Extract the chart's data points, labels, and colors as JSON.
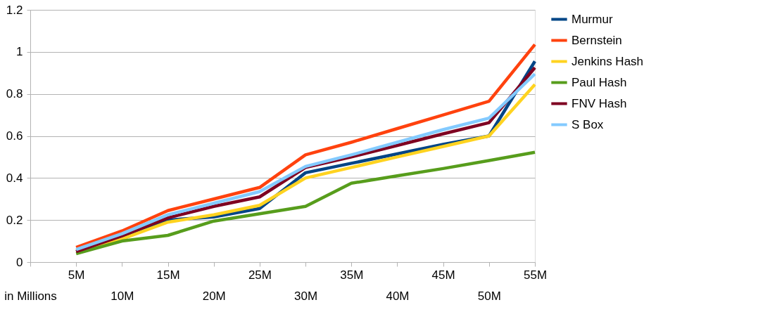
{
  "chart_data": {
    "type": "line",
    "categories": [
      "in Millions",
      "5M",
      "10M",
      "15M",
      "20M",
      "25M",
      "30M",
      "35M",
      "40M",
      "45M",
      "50M",
      "55M"
    ],
    "series": [
      {
        "name": "Murmur",
        "color": "#004586",
        "values": [
          null,
          0.05,
          0.11,
          0.2,
          0.215,
          0.255,
          0.425,
          0.47,
          0.515,
          0.56,
          0.6,
          0.955
        ]
      },
      {
        "name": "Bernstein",
        "color": "#ff420e",
        "values": [
          null,
          0.07,
          0.148,
          0.245,
          0.3,
          0.355,
          0.51,
          0.57,
          0.635,
          0.7,
          0.765,
          1.035
        ]
      },
      {
        "name": "Jenkins Hash",
        "color": "#ffd320",
        "values": [
          null,
          0.05,
          0.11,
          0.19,
          0.225,
          0.27,
          0.4,
          0.45,
          0.5,
          0.55,
          0.6,
          0.845
        ]
      },
      {
        "name": "Paul Hash",
        "color": "#579d1c",
        "values": [
          null,
          0.04,
          0.1,
          0.127,
          0.195,
          0.23,
          0.265,
          0.375,
          0.41,
          0.445,
          0.483,
          0.522
        ]
      },
      {
        "name": "FNV Hash",
        "color": "#7e0021",
        "values": [
          null,
          0.05,
          0.125,
          0.21,
          0.265,
          0.31,
          0.45,
          0.5,
          0.555,
          0.61,
          0.663,
          0.925
        ]
      },
      {
        "name": "S Box",
        "color": "#83caff",
        "values": [
          null,
          0.06,
          0.135,
          0.225,
          0.28,
          0.335,
          0.455,
          0.51,
          0.57,
          0.63,
          0.685,
          0.895
        ]
      }
    ],
    "ylim": [
      0,
      1.2
    ],
    "yticks": [
      0,
      0.2,
      0.4,
      0.6,
      0.8,
      1,
      1.2
    ],
    "grid": "y",
    "legend": "right",
    "marker": "none",
    "line_style": "solid"
  }
}
